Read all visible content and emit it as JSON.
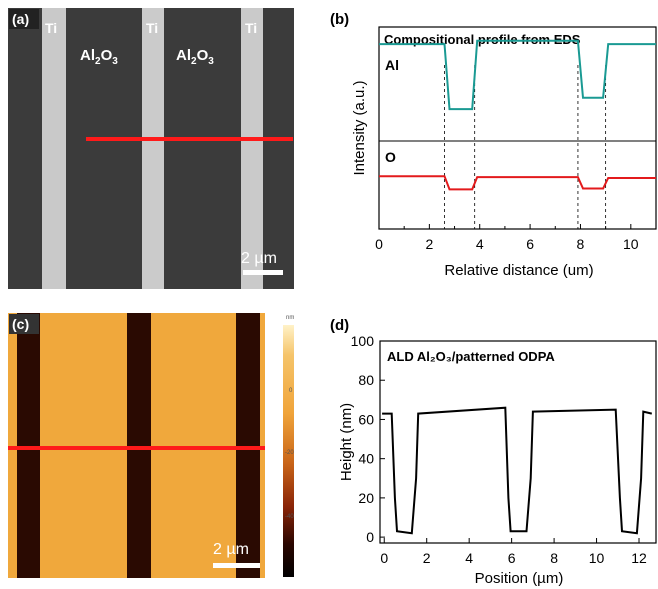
{
  "panels": {
    "a": {
      "label": "(a)",
      "tags": [
        "Ti",
        "Al2O3",
        "Ti",
        "Al2O3",
        "Ti"
      ],
      "scale_bar": "2 µm"
    },
    "b": {
      "label": "(b)",
      "title": "Compositional profile from EDS",
      "xlabel": "Relative distance (um)",
      "ylabel": "Intensity (a.u.)",
      "series_labels": [
        "Al",
        "O"
      ],
      "xticks": [
        "0",
        "2",
        "4",
        "6",
        "8",
        "10"
      ]
    },
    "c": {
      "label": "(c)",
      "scale_bar": "2 µm",
      "colorbar_unit": "nm",
      "colorbar_ticks": [
        "0",
        "-20",
        "-40"
      ]
    },
    "d": {
      "label": "(d)",
      "title": "ALD Al₂O₃/patterned ODPA",
      "xlabel": "Position (µm)",
      "ylabel": "Height (nm)",
      "xticks": [
        "0",
        "2",
        "4",
        "6",
        "8",
        "10",
        "12"
      ],
      "yticks": [
        "0",
        "20",
        "40",
        "60",
        "80",
        "100"
      ]
    }
  },
  "chart_data": [
    {
      "panel": "b",
      "type": "line",
      "title": "Compositional profile from EDS",
      "xlabel": "Relative distance (um)",
      "ylabel": "Intensity (a.u.)",
      "xlim": [
        0,
        11
      ],
      "grid": false,
      "series": [
        {
          "name": "Al",
          "color": "#1a9a93",
          "x": [
            0,
            2.6,
            2.8,
            3.7,
            3.9,
            7.9,
            8.1,
            8.9,
            9.1,
            11
          ],
          "values": [
            0.85,
            0.85,
            0.28,
            0.28,
            0.88,
            0.88,
            0.38,
            0.38,
            0.85,
            0.85
          ]
        },
        {
          "name": "O",
          "color": "#e31a1c",
          "x": [
            0,
            2.6,
            2.8,
            3.7,
            3.9,
            7.9,
            8.1,
            8.9,
            9.1,
            11
          ],
          "values": [
            0.6,
            0.6,
            0.45,
            0.45,
            0.59,
            0.59,
            0.46,
            0.46,
            0.58,
            0.58
          ]
        }
      ],
      "vlines": [
        2.6,
        3.8,
        7.9,
        9.0
      ]
    },
    {
      "panel": "d",
      "type": "line",
      "title": "ALD Al₂O₃/patterned ODPA",
      "xlabel": "Position (µm)",
      "ylabel": "Height (nm)",
      "xlim": [
        -0.2,
        12.8
      ],
      "ylim": [
        -3,
        100
      ],
      "grid": false,
      "series": [
        {
          "color": "#000000",
          "x": [
            -0.1,
            0.35,
            0.5,
            0.6,
            1.3,
            1.5,
            1.6,
            5.7,
            5.85,
            5.95,
            6.7,
            6.9,
            7.0,
            10.9,
            11.1,
            11.2,
            11.9,
            12.1,
            12.2,
            12.6
          ],
          "values": [
            63,
            63,
            20,
            3,
            2,
            30,
            63,
            66,
            20,
            3,
            3,
            30,
            64,
            65,
            20,
            3,
            2,
            30,
            64,
            63
          ]
        }
      ]
    }
  ]
}
